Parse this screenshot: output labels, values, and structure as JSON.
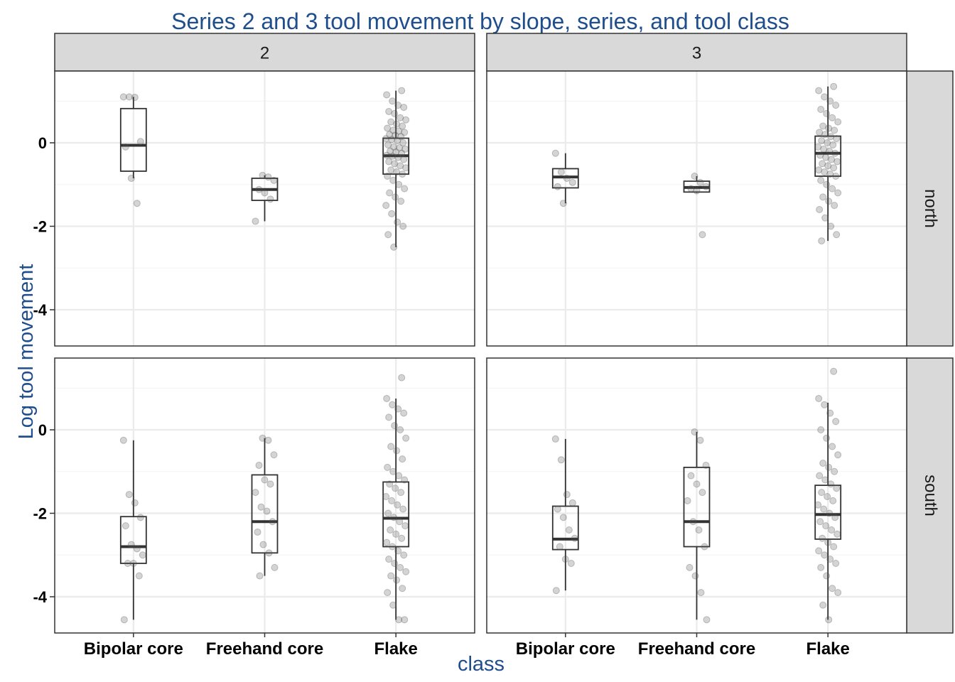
{
  "chart_data": {
    "type": "boxplot",
    "title": "Series 2 and 3 tool movement by slope, series, and tool class",
    "xlabel": "class",
    "ylabel": "Log tool movement",
    "categories": [
      "Bipolar core",
      "Freehand core",
      "Flake"
    ],
    "y_ticks": [
      "-4",
      "-2",
      "0"
    ],
    "ylim": [
      -4.9,
      1.7
    ],
    "columns": [
      "2",
      "3"
    ],
    "rows": [
      "north",
      "south"
    ],
    "colors": {
      "title": "#1f4e8c",
      "strip_fill": "#d9d9d9",
      "points": "#555555",
      "box": "#333333",
      "grid": "#ebebeb"
    },
    "panels": [
      {
        "series": "2",
        "slope": "north",
        "boxes": [
          {
            "category": "Bipolar core",
            "whisker_low": -0.85,
            "q1": -0.68,
            "median": -0.06,
            "q3": 0.82,
            "whisker_high": 1.1,
            "points": [
              1.1,
              1.1,
              1.09,
              0.03,
              -0.1,
              -0.85,
              -1.45
            ]
          },
          {
            "category": "Freehand core",
            "whisker_low": -1.88,
            "q1": -1.38,
            "median": -1.12,
            "q3": -0.85,
            "whisker_high": -0.78,
            "points": [
              -0.78,
              -0.82,
              -0.9,
              -1.12,
              -1.2,
              -1.35,
              -1.88
            ]
          },
          {
            "category": "Flake",
            "whisker_low": -2.5,
            "q1": -0.75,
            "median": -0.31,
            "q3": 0.11,
            "whisker_high": 1.25,
            "points": [
              1.25,
              1.15,
              1.0,
              0.9,
              0.85,
              0.75,
              0.7,
              0.6,
              0.55,
              0.5,
              0.45,
              0.4,
              0.35,
              0.3,
              0.28,
              0.25,
              0.2,
              0.18,
              0.15,
              0.1,
              0.08,
              0.05,
              0.0,
              -0.05,
              -0.1,
              -0.12,
              -0.15,
              -0.2,
              -0.22,
              -0.25,
              -0.3,
              -0.32,
              -0.35,
              -0.4,
              -0.45,
              -0.5,
              -0.55,
              -0.6,
              -0.65,
              -0.7,
              -0.75,
              -0.8,
              -0.9,
              -1.0,
              -1.1,
              -1.2,
              -1.3,
              -1.4,
              -1.5,
              -1.7,
              -1.9,
              -2.0,
              -2.2,
              -2.5
            ]
          }
        ]
      },
      {
        "series": "3",
        "slope": "north",
        "boxes": [
          {
            "category": "Bipolar core",
            "whisker_low": -1.45,
            "q1": -1.08,
            "median": -0.82,
            "q3": -0.62,
            "whisker_high": -0.25,
            "points": [
              -0.25,
              -0.7,
              -0.85,
              -0.95,
              -1.05,
              -1.45
            ]
          },
          {
            "category": "Freehand core",
            "whisker_low": -1.2,
            "q1": -1.18,
            "median": -1.07,
            "q3": -0.92,
            "whisker_high": -0.8,
            "points": [
              -0.8,
              -0.95,
              -1.05,
              -1.1,
              -1.15,
              -2.2
            ]
          },
          {
            "category": "Flake",
            "whisker_low": -2.35,
            "q1": -0.8,
            "median": -0.25,
            "q3": 0.16,
            "whisker_high": 1.35,
            "points": [
              1.35,
              1.25,
              1.1,
              1.0,
              0.9,
              0.8,
              0.7,
              0.6,
              0.5,
              0.4,
              0.35,
              0.3,
              0.25,
              0.2,
              0.15,
              0.1,
              0.05,
              0.0,
              -0.05,
              -0.1,
              -0.15,
              -0.2,
              -0.25,
              -0.3,
              -0.35,
              -0.4,
              -0.45,
              -0.5,
              -0.55,
              -0.6,
              -0.65,
              -0.7,
              -0.75,
              -0.8,
              -0.9,
              -1.0,
              -1.1,
              -1.2,
              -1.3,
              -1.4,
              -1.5,
              -1.6,
              -1.8,
              -2.0,
              -2.2,
              -2.35
            ]
          }
        ]
      },
      {
        "series": "2",
        "slope": "south",
        "boxes": [
          {
            "category": "Bipolar core",
            "whisker_low": -4.55,
            "q1": -3.2,
            "median": -2.8,
            "q3": -2.08,
            "whisker_high": -0.25,
            "points": [
              -0.25,
              -1.55,
              -1.75,
              -2.1,
              -2.3,
              -2.75,
              -2.85,
              -3.0,
              -3.2,
              -3.2,
              -3.5,
              -4.55
            ]
          },
          {
            "category": "Freehand core",
            "whisker_low": -3.5,
            "q1": -2.95,
            "median": -2.2,
            "q3": -1.08,
            "whisker_high": -0.2,
            "points": [
              -0.2,
              -0.25,
              -0.6,
              -0.85,
              -1.2,
              -1.3,
              -1.5,
              -1.85,
              -1.95,
              -2.2,
              -2.45,
              -2.75,
              -2.95,
              -3.3,
              -3.5
            ]
          },
          {
            "category": "Flake",
            "whisker_low": -4.55,
            "q1": -2.8,
            "median": -2.12,
            "q3": -1.25,
            "whisker_high": 0.75,
            "points": [
              1.25,
              0.75,
              0.6,
              0.5,
              0.4,
              0.3,
              0.1,
              0.0,
              -0.2,
              -0.4,
              -0.5,
              -0.7,
              -0.9,
              -1.0,
              -1.1,
              -1.2,
              -1.3,
              -1.4,
              -1.5,
              -1.6,
              -1.7,
              -1.8,
              -1.9,
              -2.0,
              -2.1,
              -2.2,
              -2.3,
              -2.4,
              -2.5,
              -2.6,
              -2.7,
              -2.8,
              -2.9,
              -3.0,
              -3.1,
              -3.2,
              -3.3,
              -3.4,
              -3.5,
              -3.6,
              -3.8,
              -3.9,
              -4.2,
              -4.55,
              -4.55
            ]
          }
        ]
      },
      {
        "series": "3",
        "slope": "south",
        "boxes": [
          {
            "category": "Bipolar core",
            "whisker_low": -3.85,
            "q1": -2.87,
            "median": -2.62,
            "q3": -1.83,
            "whisker_high": -0.22,
            "points": [
              -0.22,
              -0.72,
              -1.55,
              -1.75,
              -1.9,
              -2.1,
              -2.4,
              -2.6,
              -2.8,
              -3.1,
              -3.2,
              -3.85
            ]
          },
          {
            "category": "Freehand core",
            "whisker_low": -4.55,
            "q1": -2.8,
            "median": -2.2,
            "q3": -0.9,
            "whisker_high": -0.05,
            "points": [
              -0.05,
              -0.25,
              -0.85,
              -1.1,
              -1.3,
              -1.5,
              -1.7,
              -2.2,
              -2.4,
              -2.8,
              -3.3,
              -3.5,
              -3.9,
              -4.55
            ]
          },
          {
            "category": "Flake",
            "whisker_low": -4.55,
            "q1": -2.62,
            "median": -2.03,
            "q3": -1.33,
            "whisker_high": 0.65,
            "points": [
              1.4,
              0.75,
              0.6,
              0.4,
              0.2,
              0.0,
              -0.2,
              -0.4,
              -0.6,
              -0.8,
              -0.9,
              -1.0,
              -1.1,
              -1.2,
              -1.3,
              -1.4,
              -1.5,
              -1.6,
              -1.7,
              -1.8,
              -1.9,
              -2.0,
              -2.1,
              -2.2,
              -2.3,
              -2.4,
              -2.5,
              -2.6,
              -2.7,
              -2.8,
              -2.9,
              -3.0,
              -3.1,
              -3.2,
              -3.3,
              -3.5,
              -3.8,
              -3.9,
              -4.2,
              -4.55
            ]
          }
        ]
      }
    ]
  }
}
